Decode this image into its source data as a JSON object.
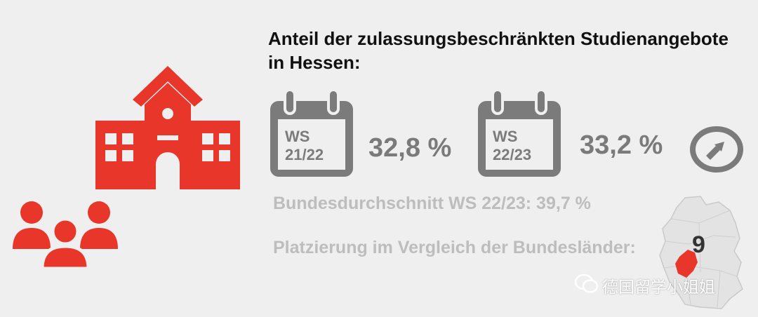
{
  "title_line1": "Anteil der zulassungsbeschränkten Studienangebote",
  "title_line2": "in Hessen:",
  "semesters": [
    {
      "label_line1": "WS",
      "label_line2": "21/22",
      "value": "32,8 %"
    },
    {
      "label_line1": "WS",
      "label_line2": "22/23",
      "value": "33,2 %"
    }
  ],
  "federal_average": "Bundesdurchschnitt WS 22/23: 39,7 %",
  "ranking_label": "Platzierung im Vergleich der Bundesländer:",
  "ranking_value": "9",
  "watermark": "德国留学小姐姐",
  "colors": {
    "background": "#efefef",
    "accent_red": "#e8372a",
    "icon_gray": "#7b7b7b",
    "muted_text": "#bdbdbd"
  },
  "icons": [
    "school-building-icon",
    "people-group-icon",
    "calendar-icon",
    "arrow-right-circle-icon",
    "germany-map-icon",
    "wechat-icon"
  ]
}
